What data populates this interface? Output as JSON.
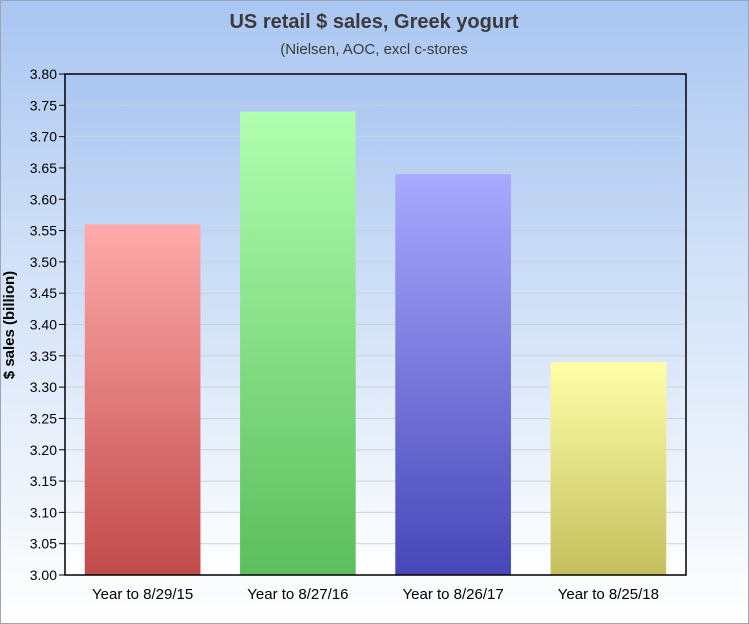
{
  "chart_data": {
    "type": "bar",
    "title": "US retail $ sales, Greek yogurt",
    "subtitle": "(Nielsen, AOC, excl c-stores",
    "xlabel": "",
    "ylabel": "$ sales (billion)",
    "categories": [
      "Year to 8/29/15",
      "Year to 8/27/16",
      "Year to 8/26/17",
      "Year to 8/25/18"
    ],
    "values": [
      3.56,
      3.74,
      3.64,
      3.34
    ],
    "ylim": [
      3.0,
      3.8
    ],
    "yticks": [
      "3.00",
      "3.05",
      "3.10",
      "3.15",
      "3.20",
      "3.25",
      "3.30",
      "3.35",
      "3.40",
      "3.45",
      "3.50",
      "3.55",
      "3.60",
      "3.65",
      "3.70",
      "3.75",
      "3.80"
    ],
    "grid": true,
    "bar_colors": [
      {
        "top": "#ffaaaa",
        "bottom": "#c24a4a"
      },
      {
        "top": "#b0ffb0",
        "bottom": "#5cbe5c"
      },
      {
        "top": "#a9a9ff",
        "bottom": "#4646b8"
      },
      {
        "top": "#ffffa9",
        "bottom": "#c4c05e"
      }
    ],
    "plot_background": {
      "top": "#a9c6f2",
      "bottom": "#ffffff"
    }
  }
}
